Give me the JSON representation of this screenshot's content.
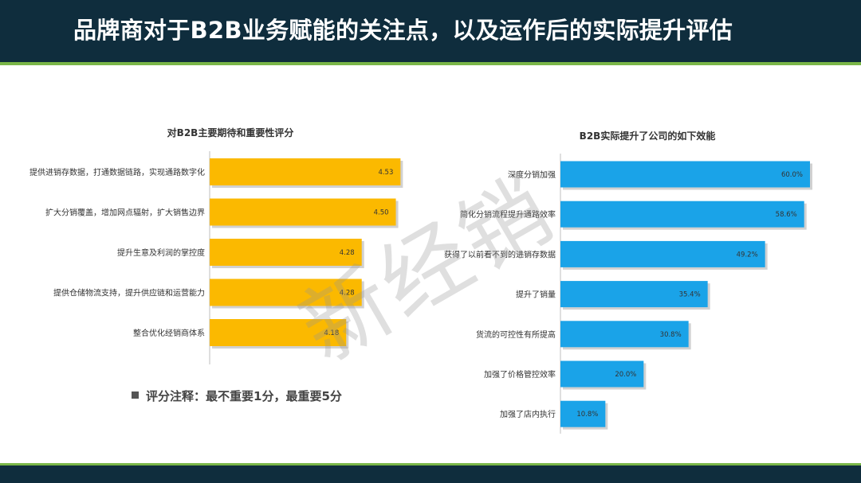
{
  "header": {
    "title": "品牌商对于B2B业务赋能的关注点，以及运作后的实际提升评估"
  },
  "watermark": {
    "text": "新经销"
  },
  "note": {
    "text": "评分注释：最不重要1分，最重要5分"
  },
  "colors": {
    "header_bg": "#0f2d3d",
    "accent_line": "#7ab648",
    "left_bar": "#fbb900",
    "right_bar": "#1aa3e8"
  },
  "chart_data": [
    {
      "type": "bar",
      "orientation": "horizontal",
      "title": "对B2B主要期待和重要性评分",
      "categories": [
        "提供进销存数据，打通数据链路，实现通路数字化",
        "扩大分销覆盖，增加网点辐射，扩大销售边界",
        "提升生意及利润的掌控度",
        "提供仓储物流支持，提升供应链和运营能力",
        "整合优化经销商体系"
      ],
      "values": [
        4.53,
        4.5,
        4.28,
        4.28,
        4.18
      ],
      "value_labels": [
        "4.53",
        "4.50",
        "4.28",
        "4.28",
        "4.18"
      ],
      "xlim": [
        3.3,
        4.6
      ],
      "grid": false,
      "color": "#fbb900"
    },
    {
      "type": "bar",
      "orientation": "horizontal",
      "title": "B2B实际提升了公司的如下效能",
      "categories": [
        "深度分销加强",
        "简化分销流程提升通路效率",
        "获得了以前看不到的进销存数据",
        "提升了销量",
        "货流的可控性有所提高",
        "加强了价格管控效率",
        "加强了店内执行"
      ],
      "values": [
        60.0,
        58.6,
        49.2,
        35.4,
        30.8,
        20.0,
        10.8
      ],
      "value_labels": [
        "60.0%",
        "58.6%",
        "49.2%",
        "35.4%",
        "30.8%",
        "20.0%",
        "10.8%"
      ],
      "xlim": [
        0,
        60
      ],
      "grid": false,
      "color": "#1aa3e8"
    }
  ]
}
